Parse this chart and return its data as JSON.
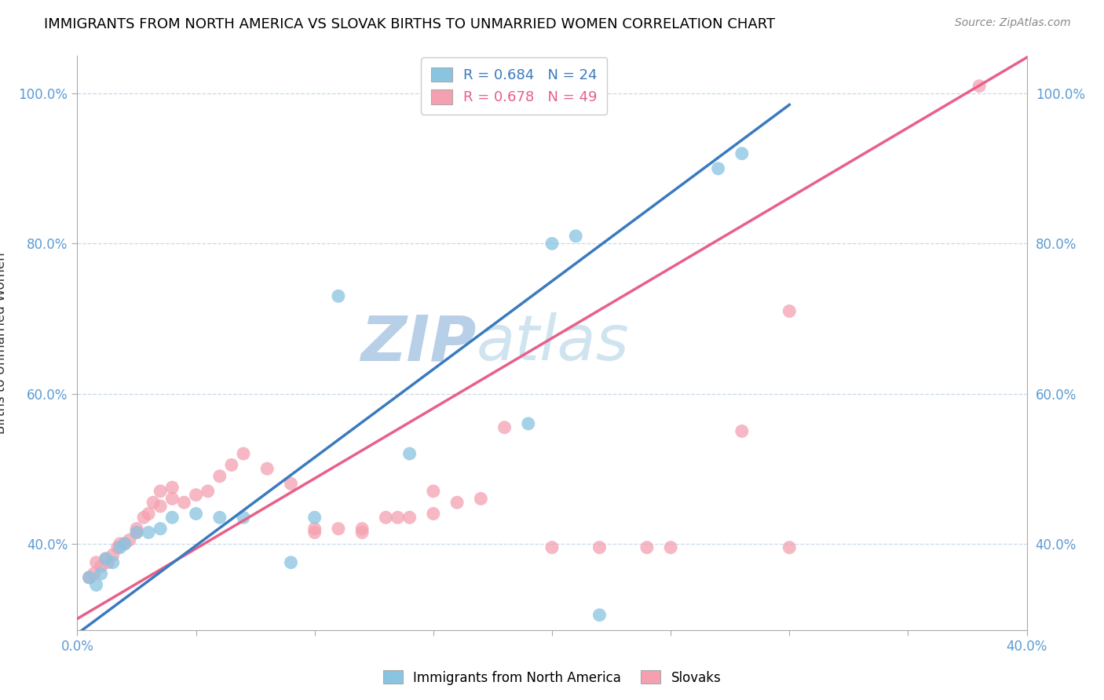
{
  "title": "IMMIGRANTS FROM NORTH AMERICA VS SLOVAK BIRTHS TO UNMARRIED WOMEN CORRELATION CHART",
  "source": "Source: ZipAtlas.com",
  "ylabel": "Births to Unmarried Women",
  "y_ticks": [
    "40.0%",
    "60.0%",
    "80.0%",
    "100.0%"
  ],
  "y_tick_vals": [
    0.4,
    0.6,
    0.8,
    1.0
  ],
  "x_range": [
    0.0,
    0.4
  ],
  "y_range": [
    0.285,
    1.05
  ],
  "blue_r": 0.684,
  "blue_n": 24,
  "pink_r": 0.678,
  "pink_n": 49,
  "blue_color": "#89c4e1",
  "pink_color": "#f4a0b0",
  "blue_line_color": "#3a7abf",
  "pink_line_color": "#e8608a",
  "watermark_zip": "ZIP",
  "watermark_atlas": "atlas",
  "watermark_color": "#ccddf0",
  "legend_label_blue": "Immigrants from North America",
  "legend_label_pink": "Slovaks",
  "blue_points": [
    [
      0.005,
      0.355
    ],
    [
      0.008,
      0.345
    ],
    [
      0.01,
      0.36
    ],
    [
      0.012,
      0.38
    ],
    [
      0.015,
      0.375
    ],
    [
      0.018,
      0.395
    ],
    [
      0.02,
      0.4
    ],
    [
      0.025,
      0.415
    ],
    [
      0.03,
      0.415
    ],
    [
      0.035,
      0.42
    ],
    [
      0.04,
      0.435
    ],
    [
      0.05,
      0.44
    ],
    [
      0.06,
      0.435
    ],
    [
      0.07,
      0.435
    ],
    [
      0.09,
      0.375
    ],
    [
      0.1,
      0.435
    ],
    [
      0.11,
      0.73
    ],
    [
      0.14,
      0.52
    ],
    [
      0.19,
      0.56
    ],
    [
      0.2,
      0.8
    ],
    [
      0.21,
      0.81
    ],
    [
      0.22,
      0.305
    ],
    [
      0.27,
      0.9
    ],
    [
      0.28,
      0.92
    ]
  ],
  "pink_points": [
    [
      0.005,
      0.355
    ],
    [
      0.007,
      0.36
    ],
    [
      0.008,
      0.375
    ],
    [
      0.01,
      0.37
    ],
    [
      0.012,
      0.38
    ],
    [
      0.013,
      0.375
    ],
    [
      0.015,
      0.385
    ],
    [
      0.017,
      0.395
    ],
    [
      0.018,
      0.4
    ],
    [
      0.02,
      0.4
    ],
    [
      0.022,
      0.405
    ],
    [
      0.025,
      0.415
    ],
    [
      0.025,
      0.42
    ],
    [
      0.028,
      0.435
    ],
    [
      0.03,
      0.44
    ],
    [
      0.032,
      0.455
    ],
    [
      0.035,
      0.45
    ],
    [
      0.035,
      0.47
    ],
    [
      0.04,
      0.46
    ],
    [
      0.04,
      0.475
    ],
    [
      0.045,
      0.455
    ],
    [
      0.05,
      0.465
    ],
    [
      0.055,
      0.47
    ],
    [
      0.06,
      0.49
    ],
    [
      0.065,
      0.505
    ],
    [
      0.07,
      0.52
    ],
    [
      0.08,
      0.5
    ],
    [
      0.09,
      0.48
    ],
    [
      0.1,
      0.415
    ],
    [
      0.1,
      0.42
    ],
    [
      0.11,
      0.42
    ],
    [
      0.12,
      0.415
    ],
    [
      0.12,
      0.42
    ],
    [
      0.13,
      0.435
    ],
    [
      0.135,
      0.435
    ],
    [
      0.14,
      0.435
    ],
    [
      0.15,
      0.44
    ],
    [
      0.15,
      0.47
    ],
    [
      0.16,
      0.455
    ],
    [
      0.17,
      0.46
    ],
    [
      0.18,
      0.555
    ],
    [
      0.2,
      0.395
    ],
    [
      0.22,
      0.395
    ],
    [
      0.24,
      0.395
    ],
    [
      0.25,
      0.395
    ],
    [
      0.28,
      0.55
    ],
    [
      0.3,
      0.395
    ],
    [
      0.3,
      0.71
    ],
    [
      0.38,
      1.01
    ]
  ]
}
